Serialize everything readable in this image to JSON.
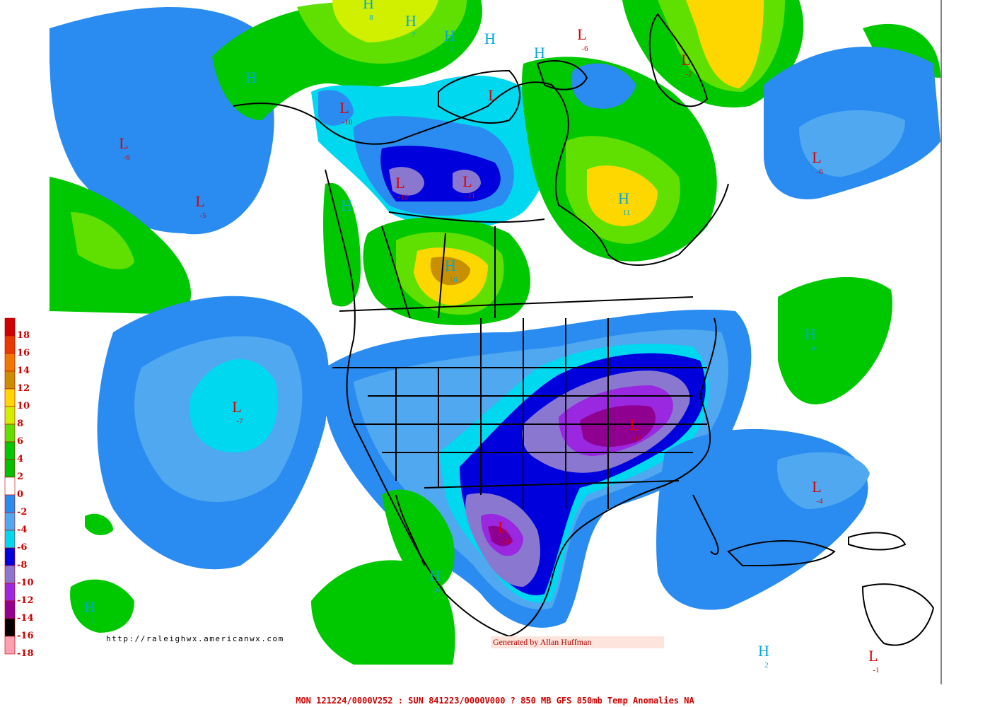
{
  "colors": {
    "background": "#ffffff",
    "high_label": "#00a8e0",
    "low_label": "#dd0000",
    "coast_and_borders": "#000000"
  },
  "legend": {
    "title": "",
    "units": "",
    "bins": [
      {
        "label": "18",
        "color": "#cc0000"
      },
      {
        "label": "16",
        "color": "#e83a00"
      },
      {
        "label": "14",
        "color": "#f07800"
      },
      {
        "label": "12",
        "color": "#c89000"
      },
      {
        "label": "10",
        "color": "#ffd700"
      },
      {
        "label": "8",
        "color": "#d0f000"
      },
      {
        "label": "6",
        "color": "#60e000"
      },
      {
        "label": "4",
        "color": "#00c800"
      },
      {
        "label": "2",
        "color": "#00c000"
      },
      {
        "label": "0",
        "color": "#ffffff"
      },
      {
        "label": "-2",
        "color": "#2a8cf0"
      },
      {
        "label": "-4",
        "color": "#50a8f0"
      },
      {
        "label": "-6",
        "color": "#00d8f0"
      },
      {
        "label": "-8",
        "color": "#0000dd"
      },
      {
        "label": "-10",
        "color": "#8a78d0"
      },
      {
        "label": "-12",
        "color": "#9a28e0"
      },
      {
        "label": "-14",
        "color": "#900090"
      },
      {
        "label": "-16",
        "color": "#000000"
      },
      {
        "label": "-18",
        "color": "#ffa0b0"
      }
    ]
  },
  "systems": [
    {
      "type": "H",
      "value": "8"
    },
    {
      "type": "H",
      "value": "7"
    },
    {
      "type": "H",
      "value": "8"
    },
    {
      "type": "H",
      "value": ""
    },
    {
      "type": "H",
      "value": ""
    },
    {
      "type": "L",
      "value": "-6"
    },
    {
      "type": "L",
      "value": "-2"
    },
    {
      "type": "H",
      "value": ""
    },
    {
      "type": "L",
      "value": "-10"
    },
    {
      "type": "L",
      "value": ""
    },
    {
      "type": "L",
      "value": "-6"
    },
    {
      "type": "L",
      "value": "-5"
    },
    {
      "type": "L",
      "value": "-12"
    },
    {
      "type": "L",
      "value": "-11"
    },
    {
      "type": "H",
      "value": "11"
    },
    {
      "type": "L",
      "value": "-6"
    },
    {
      "type": "H",
      "value": ""
    },
    {
      "type": "H",
      "value": "16"
    },
    {
      "type": "H",
      "value": "4"
    },
    {
      "type": "L",
      "value": "-7"
    },
    {
      "type": "L",
      "value": "-17"
    },
    {
      "type": "L",
      "value": "-4"
    },
    {
      "type": "L",
      "value": "-16"
    },
    {
      "type": "H",
      "value": "6"
    },
    {
      "type": "H",
      "value": "3"
    },
    {
      "type": "H",
      "value": "2"
    },
    {
      "type": "L",
      "value": "-1"
    }
  ],
  "source_url": "http://raleighwx.americanwx.com",
  "credit": "Generated by Allan Huffman",
  "footer": "MON 121224/0000V252 : SUN 841223/0000V000  ? 850 MB GFS 850mb Temp Anomalies NA"
}
